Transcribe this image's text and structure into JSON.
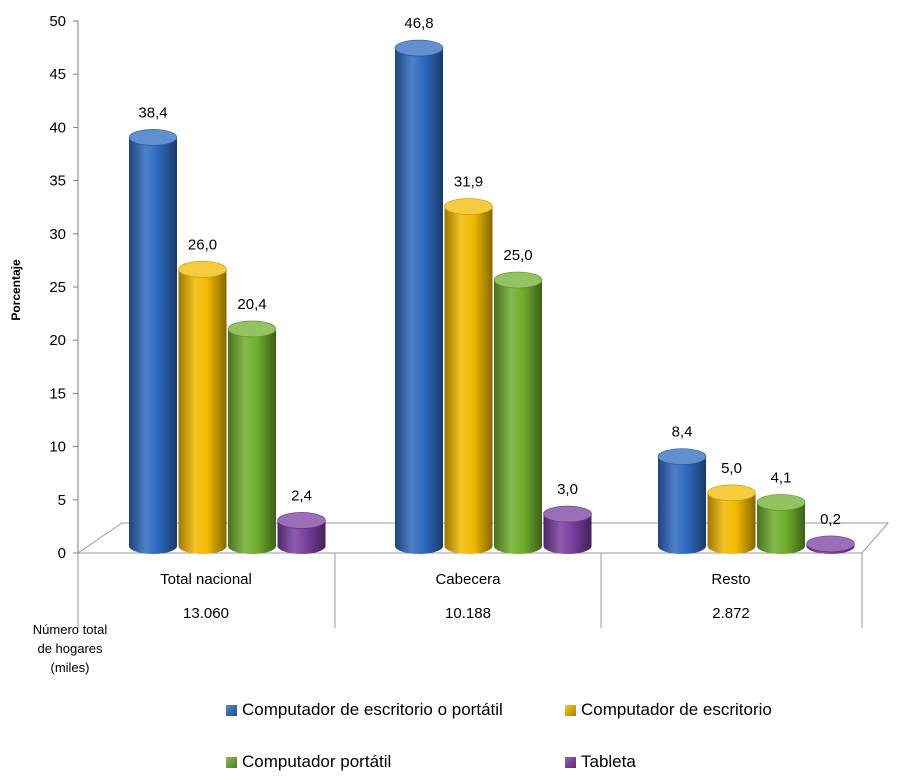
{
  "chart_data": {
    "type": "bar",
    "title": "",
    "xlabel": "",
    "ylabel": "Porcentaje",
    "ylim": [
      0,
      50
    ],
    "yticks": [
      0,
      5,
      10,
      15,
      20,
      25,
      30,
      35,
      40,
      45,
      50
    ],
    "grid": false,
    "legend_position": "bottom",
    "categories": [
      "Total nacional",
      "Cabecera",
      "Resto"
    ],
    "category_totals": [
      "13.060",
      "10.188",
      "2.872"
    ],
    "totals_label": "Número total de hogares (miles)",
    "series": [
      {
        "name": "Computador de escritorio o portátil",
        "values": [
          38.4,
          46.8,
          8.4
        ],
        "labels": [
          "38,4",
          "46,8",
          "8,4"
        ],
        "color": "#2E6AC0"
      },
      {
        "name": "Computador de escritorio",
        "values": [
          26.0,
          31.9,
          5.0
        ],
        "labels": [
          "26,0",
          "31,9",
          "5,0"
        ],
        "color": "#F2BA00"
      },
      {
        "name": "Computador portátil",
        "values": [
          20.4,
          25.0,
          4.1
        ],
        "labels": [
          "20,4",
          "25,0",
          "4,1"
        ],
        "color": "#6FAE2C"
      },
      {
        "name": "Tableta",
        "values": [
          2.4,
          3.0,
          0.2
        ],
        "labels": [
          "2,4",
          "3,0",
          "0,2"
        ],
        "color": "#7A3EA0"
      }
    ]
  }
}
